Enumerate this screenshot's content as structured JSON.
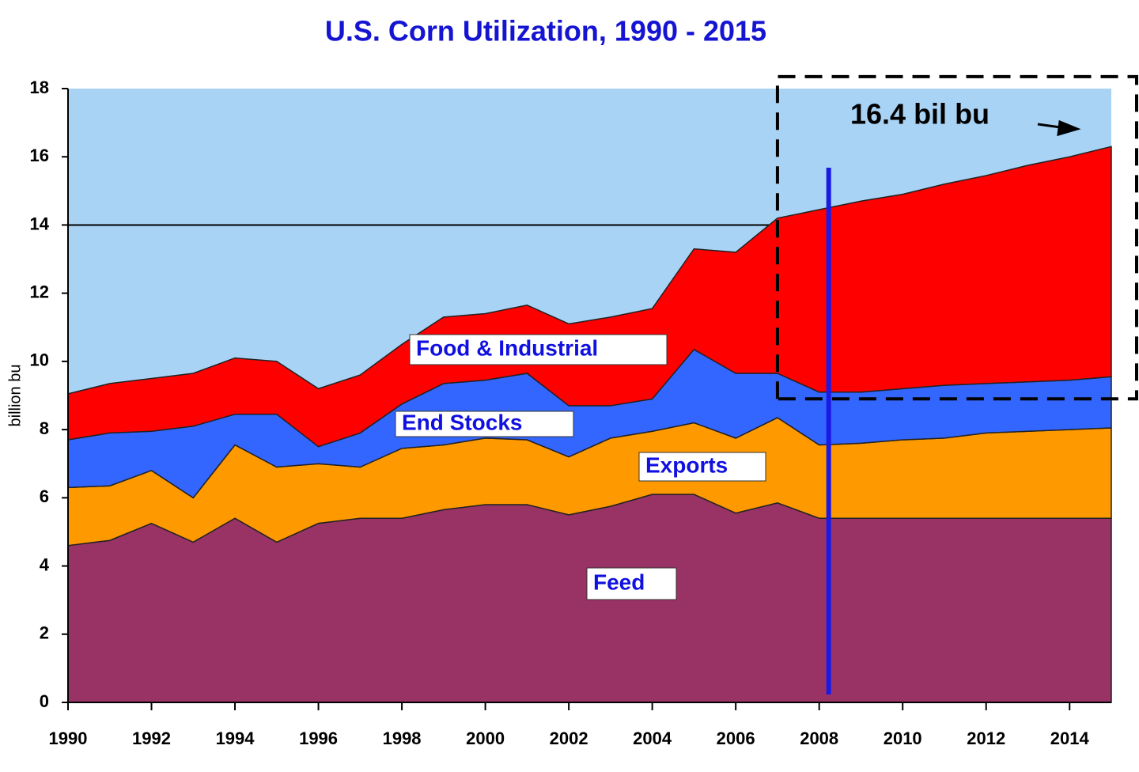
{
  "chart_data": {
    "type": "stacked_area",
    "title": "U.S. Corn Utilization, 1990 - 2015",
    "y_label": "billion bu",
    "annotation": "16.4 bil bu",
    "x": [
      1990,
      1991,
      1992,
      1993,
      1994,
      1995,
      1996,
      1997,
      1998,
      1999,
      2000,
      2001,
      2002,
      2003,
      2004,
      2005,
      2006,
      2007,
      2008,
      2009,
      2010,
      2011,
      2012,
      2013,
      2014,
      2015
    ],
    "xlim": [
      1990,
      2015
    ],
    "xticks": [
      1990,
      1992,
      1994,
      1996,
      1998,
      2000,
      2002,
      2004,
      2006,
      2008,
      2010,
      2012,
      2014
    ],
    "ylim": [
      0,
      18
    ],
    "yticks": [
      0,
      2,
      4,
      6,
      8,
      10,
      12,
      14,
      16,
      18
    ],
    "hline": 14,
    "vline": 2008,
    "highlight": {
      "x": 2007,
      "y": [
        8.9,
        18.35
      ]
    },
    "background": "#a9d3f5",
    "series": [
      {
        "name": "Feed",
        "color": "#993366",
        "values": [
          4.6,
          4.75,
          5.25,
          4.7,
          5.4,
          4.7,
          5.25,
          5.4,
          5.4,
          5.65,
          5.8,
          5.8,
          5.5,
          5.75,
          6.1,
          6.1,
          5.55,
          5.85,
          5.4,
          5.4,
          5.4,
          5.4,
          5.4,
          5.4,
          5.4,
          5.4
        ]
      },
      {
        "name": "Exports",
        "color": "#ff9900",
        "values": [
          1.7,
          1.6,
          1.55,
          1.3,
          2.15,
          2.2,
          1.75,
          1.5,
          2.05,
          1.9,
          1.95,
          1.9,
          1.7,
          2.0,
          1.85,
          2.1,
          2.2,
          2.5,
          2.15,
          2.2,
          2.3,
          2.35,
          2.5,
          2.55,
          2.6,
          2.65
        ]
      },
      {
        "name": "End Stocks",
        "color": "#3366ff",
        "values": [
          1.4,
          1.55,
          1.15,
          2.1,
          0.9,
          1.55,
          0.5,
          1.0,
          1.3,
          1.8,
          1.7,
          1.95,
          1.5,
          0.95,
          0.95,
          2.15,
          1.9,
          1.3,
          1.55,
          1.5,
          1.5,
          1.55,
          1.45,
          1.45,
          1.45,
          1.5
        ]
      },
      {
        "name": "Food & Industrial",
        "color": "#ff0000",
        "values": [
          1.35,
          1.45,
          1.55,
          1.55,
          1.65,
          1.55,
          1.7,
          1.7,
          1.75,
          1.95,
          1.95,
          2.0,
          2.4,
          2.6,
          2.65,
          2.95,
          3.55,
          4.55,
          5.35,
          5.6,
          5.7,
          5.9,
          6.1,
          6.35,
          6.55,
          6.75
        ]
      }
    ]
  }
}
